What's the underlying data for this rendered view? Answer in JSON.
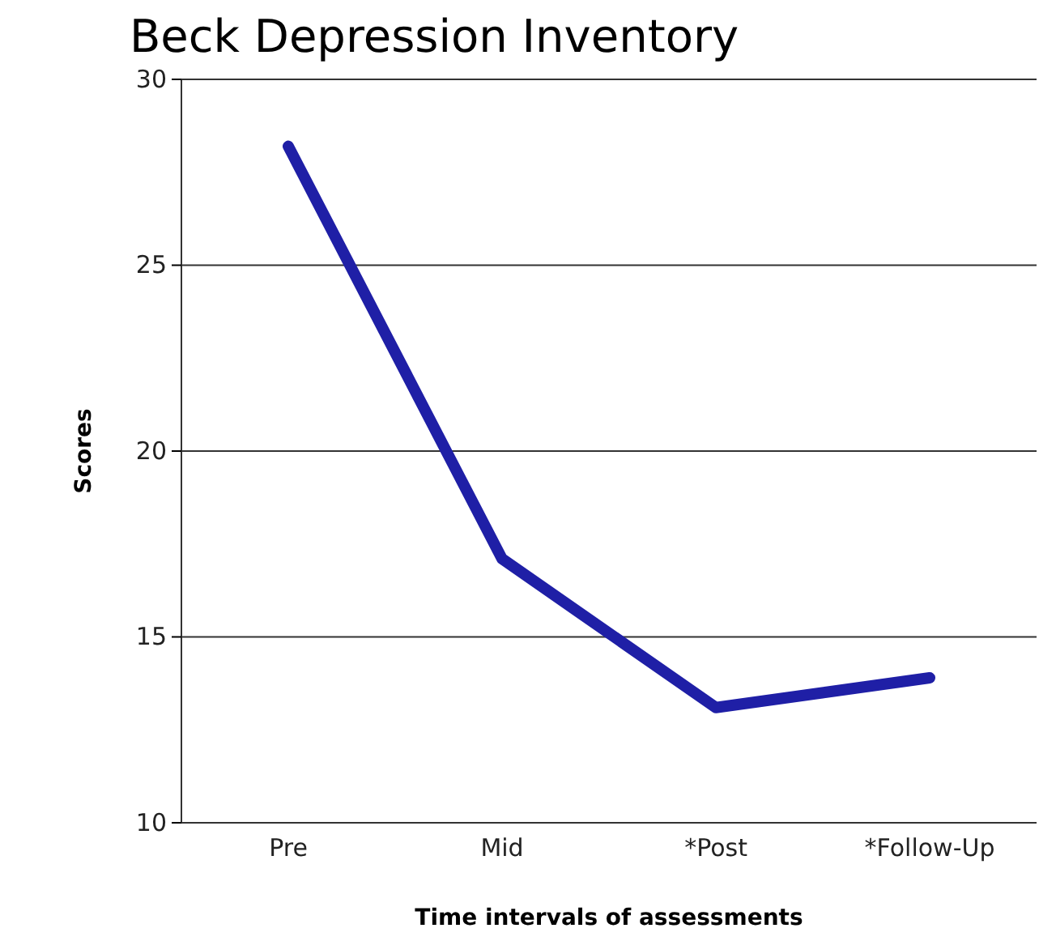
{
  "chart_data": {
    "type": "line",
    "title": "Beck Depression Inventory",
    "xlabel": "Time intervals of assessments",
    "ylabel": "Scores",
    "categories": [
      "Pre",
      "Mid",
      "*Post",
      "*Follow-Up"
    ],
    "series": [
      {
        "color": "#1f1fa6",
        "values": [
          28.2,
          17.1,
          13.1,
          13.9
        ]
      }
    ],
    "ylim": [
      10,
      30
    ],
    "yticks": [
      10,
      15,
      20,
      25,
      30
    ],
    "grid": "y",
    "marker": "none",
    "line_style": "solid"
  }
}
